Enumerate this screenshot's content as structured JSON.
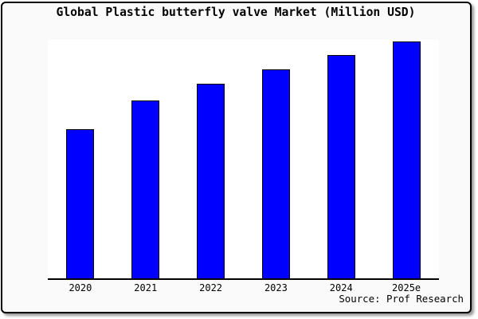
{
  "chart_data": {
    "type": "bar",
    "title": "Global Plastic butterfly valve Market (Million USD)",
    "categories": [
      "2020",
      "2021",
      "2022",
      "2023",
      "2024",
      "2025e"
    ],
    "values": [
      63,
      75,
      82,
      88,
      94,
      100
    ],
    "values_note": "y-axis has no tick labels; values estimated from bar heights relative to 2025e = 100",
    "ylim": [
      0,
      100.5
    ],
    "xlabel": "",
    "ylabel": "",
    "grid": false,
    "legend": false,
    "source": "Source: Prof Research"
  },
  "colors": {
    "bar_fill": "#0000ff",
    "bar_edge": "#000000",
    "figure_bg": "#fafafa",
    "plot_bg": "#ffffff",
    "border": "#000000",
    "shadow": "#999999",
    "text": "#000000"
  }
}
